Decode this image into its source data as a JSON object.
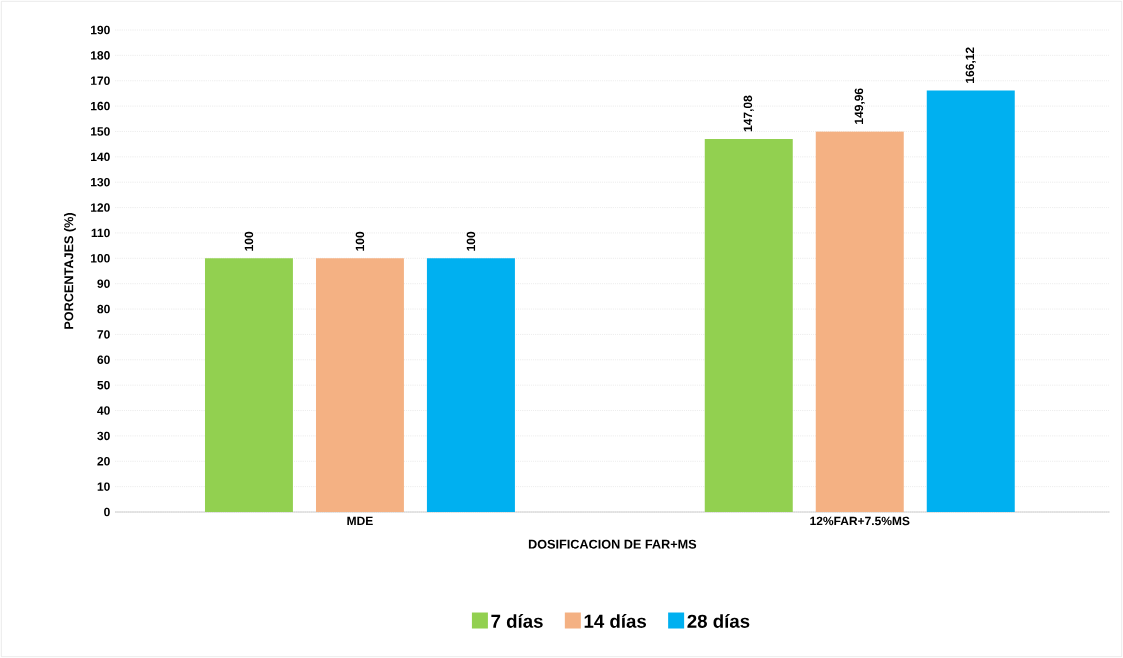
{
  "chart_data": {
    "type": "bar",
    "xlabel": "DOSIFICACION DE FAR+MS",
    "ylabel": "PORCENTAJES (%)",
    "categories": [
      "MDE",
      "12%FAR+7.5%MS"
    ],
    "series": [
      {
        "name": "7 días",
        "color": "#92d050",
        "values": [
          100,
          147.08
        ],
        "value_labels": [
          "100",
          "147,08"
        ]
      },
      {
        "name": "14 días",
        "color": "#f4b183",
        "values": [
          100,
          149.96
        ],
        "value_labels": [
          "100",
          "149,96"
        ]
      },
      {
        "name": "28 días",
        "color": "#00b0f0",
        "values": [
          100,
          166.12
        ],
        "value_labels": [
          "100",
          "166,12"
        ]
      }
    ],
    "ylim": [
      0,
      190
    ],
    "yticks": [
      0,
      10,
      20,
      30,
      40,
      50,
      60,
      70,
      80,
      90,
      100,
      110,
      120,
      130,
      140,
      150,
      160,
      170,
      180,
      190
    ],
    "grid": "y",
    "legend": "bottom"
  }
}
